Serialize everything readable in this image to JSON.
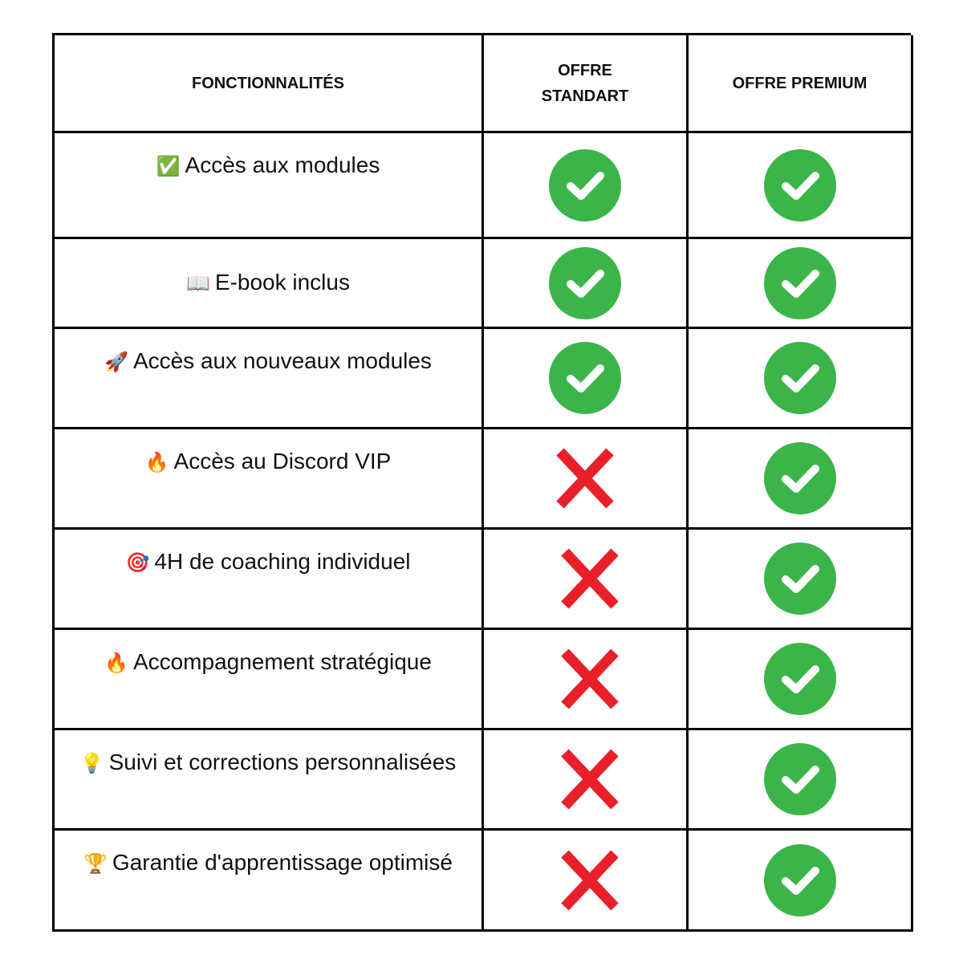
{
  "headers": {
    "feature": "FONCTIONNALITÉS",
    "standard": "OFFRE\nSTANDART",
    "premium": "OFFRE PREMIUM"
  },
  "colors": {
    "check": "#3bb54a",
    "cross": "#e8202a"
  },
  "rows": [
    {
      "emoji": "✅",
      "icon": "check-box-icon",
      "label": "Accès aux modules",
      "standard": true,
      "premium": true
    },
    {
      "emoji": "📖",
      "icon": "book-icon",
      "label": "E-book inclus",
      "standard": true,
      "premium": true
    },
    {
      "emoji": "🚀",
      "icon": "rocket-icon",
      "label": "Accès aux nouveaux modules",
      "standard": true,
      "premium": true
    },
    {
      "emoji": "🔥",
      "icon": "fire-icon",
      "label": "Accès au Discord VIP",
      "standard": false,
      "premium": true
    },
    {
      "emoji": "🎯",
      "icon": "target-icon",
      "label": "4H de coaching individuel",
      "standard": false,
      "premium": true
    },
    {
      "emoji": "🔥",
      "icon": "fire-icon",
      "label": "Accompagnement stratégique",
      "standard": false,
      "premium": true
    },
    {
      "emoji": "💡",
      "icon": "lightbulb-icon",
      "label": "Suivi et corrections personnalisées",
      "standard": false,
      "premium": true
    },
    {
      "emoji": "🏆",
      "icon": "trophy-icon",
      "label": "Garantie d'apprentissage optimisé",
      "standard": false,
      "premium": true
    }
  ]
}
